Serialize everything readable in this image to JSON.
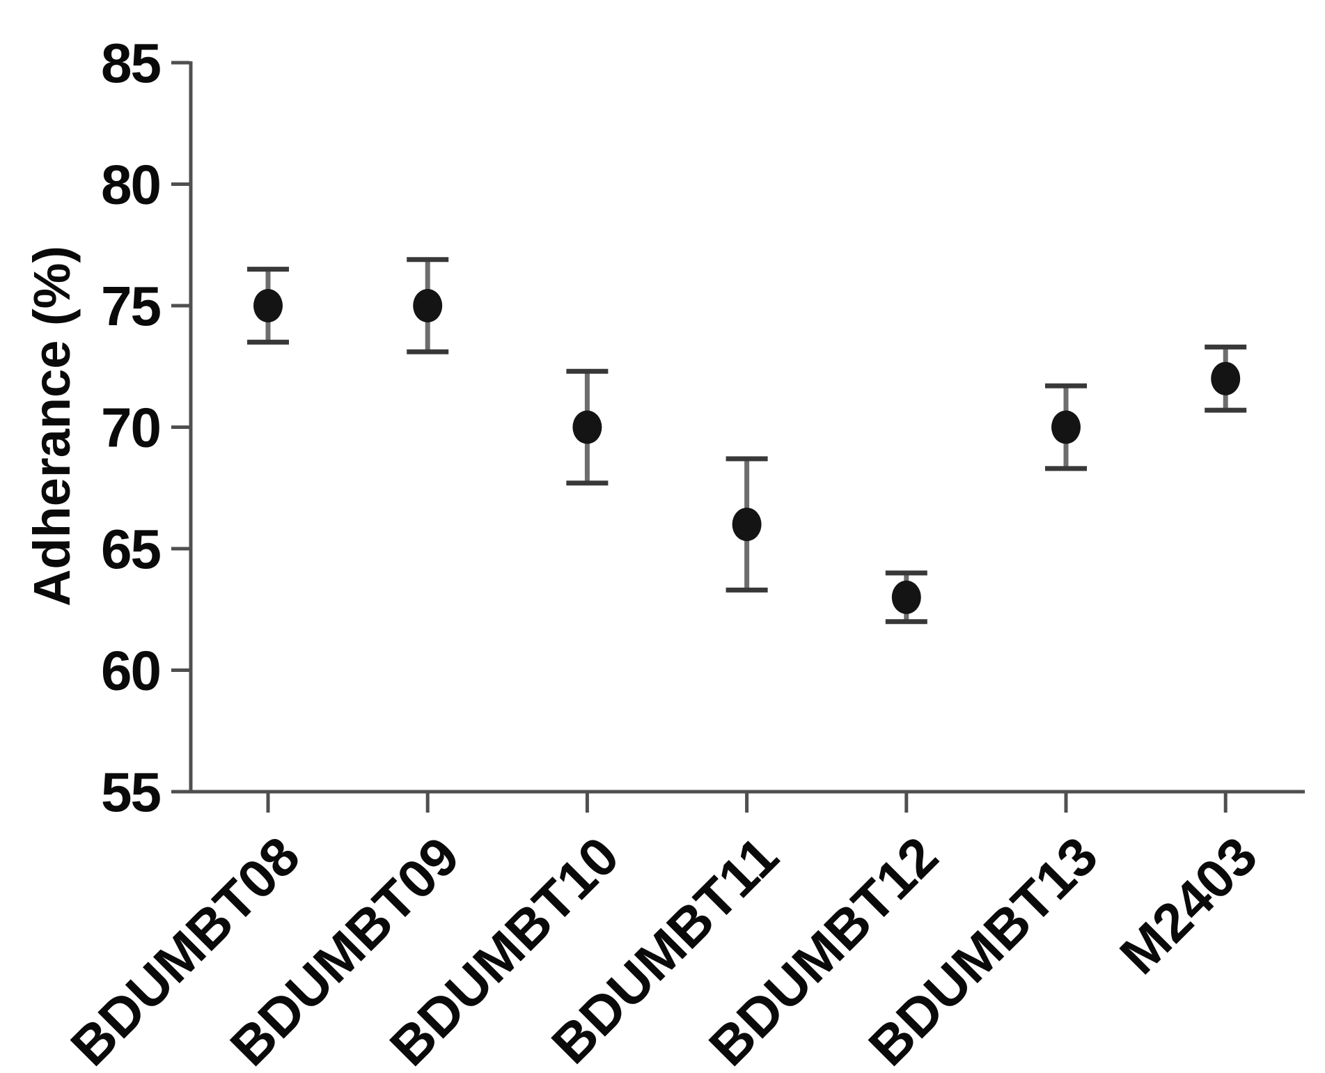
{
  "figure": {
    "background": "#ffffff",
    "description": "Scatter plot of mean adherence percentage with error bars for seven batches"
  },
  "chart_data": {
    "type": "scatter",
    "title": "",
    "xlabel": "",
    "ylabel": "Adherance (%)",
    "ylim": [
      55,
      85
    ],
    "ytick_step": 5,
    "yticks": [
      55,
      60,
      65,
      70,
      75,
      80,
      85
    ],
    "grid": false,
    "legend_position": "none",
    "x_label_rotation_deg": -45,
    "categories": [
      "BDUMBT08",
      "BDUMBT09",
      "BDUMBT10",
      "BDUMBT11",
      "BDUMBT12",
      "BDUMBT13",
      "M2403"
    ],
    "series": [
      {
        "name": "Adherance",
        "marker": "filled-circle",
        "values": [
          75,
          75,
          70,
          66,
          63,
          70,
          72
        ],
        "error_upper": [
          76.5,
          76.9,
          72.3,
          68.7,
          64.0,
          71.7,
          73.3
        ],
        "error_lower": [
          73.5,
          73.1,
          67.7,
          63.3,
          62.0,
          68.3,
          70.7
        ]
      }
    ]
  },
  "colors": {
    "background": "#ffffff",
    "axis": "#4f4f4f",
    "text": "#0a0a0a",
    "point": "#141414",
    "error_line": "#6d6d6d",
    "error_cap": "#383838"
  }
}
